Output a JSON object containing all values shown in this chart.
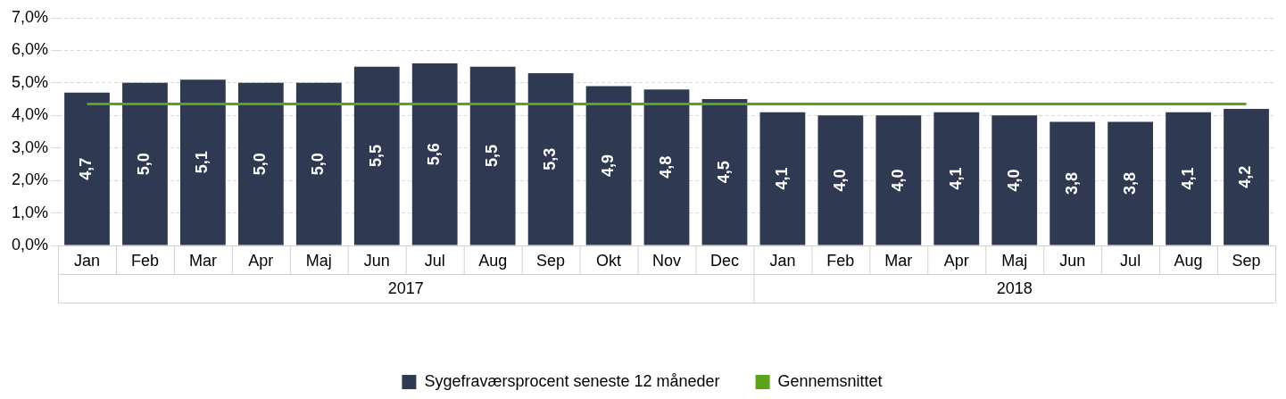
{
  "chart_data": {
    "type": "bar",
    "categories": [
      "Jan",
      "Feb",
      "Mar",
      "Apr",
      "Maj",
      "Jun",
      "Jul",
      "Aug",
      "Sep",
      "Okt",
      "Nov",
      "Dec",
      "Jan",
      "Feb",
      "Mar",
      "Apr",
      "Maj",
      "Jun",
      "Jul",
      "Aug",
      "Sep"
    ],
    "series": [
      {
        "name": "Sygefraværsprocent seneste 12 måneder",
        "color": "#2f3a52",
        "values": [
          4.7,
          5.0,
          5.1,
          5.0,
          5.0,
          5.5,
          5.6,
          5.5,
          5.3,
          4.9,
          4.8,
          4.5,
          4.1,
          4.0,
          4.0,
          4.1,
          4.0,
          3.8,
          3.8,
          4.1,
          4.2
        ],
        "value_labels": [
          "4,7",
          "5,0",
          "5,1",
          "5,0",
          "5,0",
          "5,5",
          "5,6",
          "5,5",
          "5,3",
          "4,9",
          "4,8",
          "4,5",
          "4,1",
          "4,0",
          "4,0",
          "4,1",
          "4,0",
          "3,8",
          "3,8",
          "4,1",
          "4,2"
        ]
      },
      {
        "name": "Gennemsnittet",
        "type": "line",
        "color": "#5ba319",
        "values": [
          4.35,
          4.35,
          4.35,
          4.35,
          4.35,
          4.35,
          4.35,
          4.35,
          4.35,
          4.35,
          4.35,
          4.35,
          4.35,
          4.35,
          4.35,
          4.35,
          4.35,
          4.35,
          4.35,
          4.35,
          4.35
        ]
      }
    ],
    "annotations": [
      "2017",
      "2018"
    ],
    "ylim": [
      0,
      7
    ],
    "yticks": [
      {
        "value": 0,
        "label": "0,0%"
      },
      {
        "value": 1,
        "label": "1,0%"
      },
      {
        "value": 2,
        "label": "2,0%"
      },
      {
        "value": 3,
        "label": "3,0%"
      },
      {
        "value": 4,
        "label": "4,0%"
      },
      {
        "value": 5,
        "label": "5,0%"
      },
      {
        "value": 6,
        "label": "6,0%"
      },
      {
        "value": 7,
        "label": "7,0%"
      }
    ],
    "grid": "y",
    "legend": "bottom",
    "marker": "none"
  }
}
